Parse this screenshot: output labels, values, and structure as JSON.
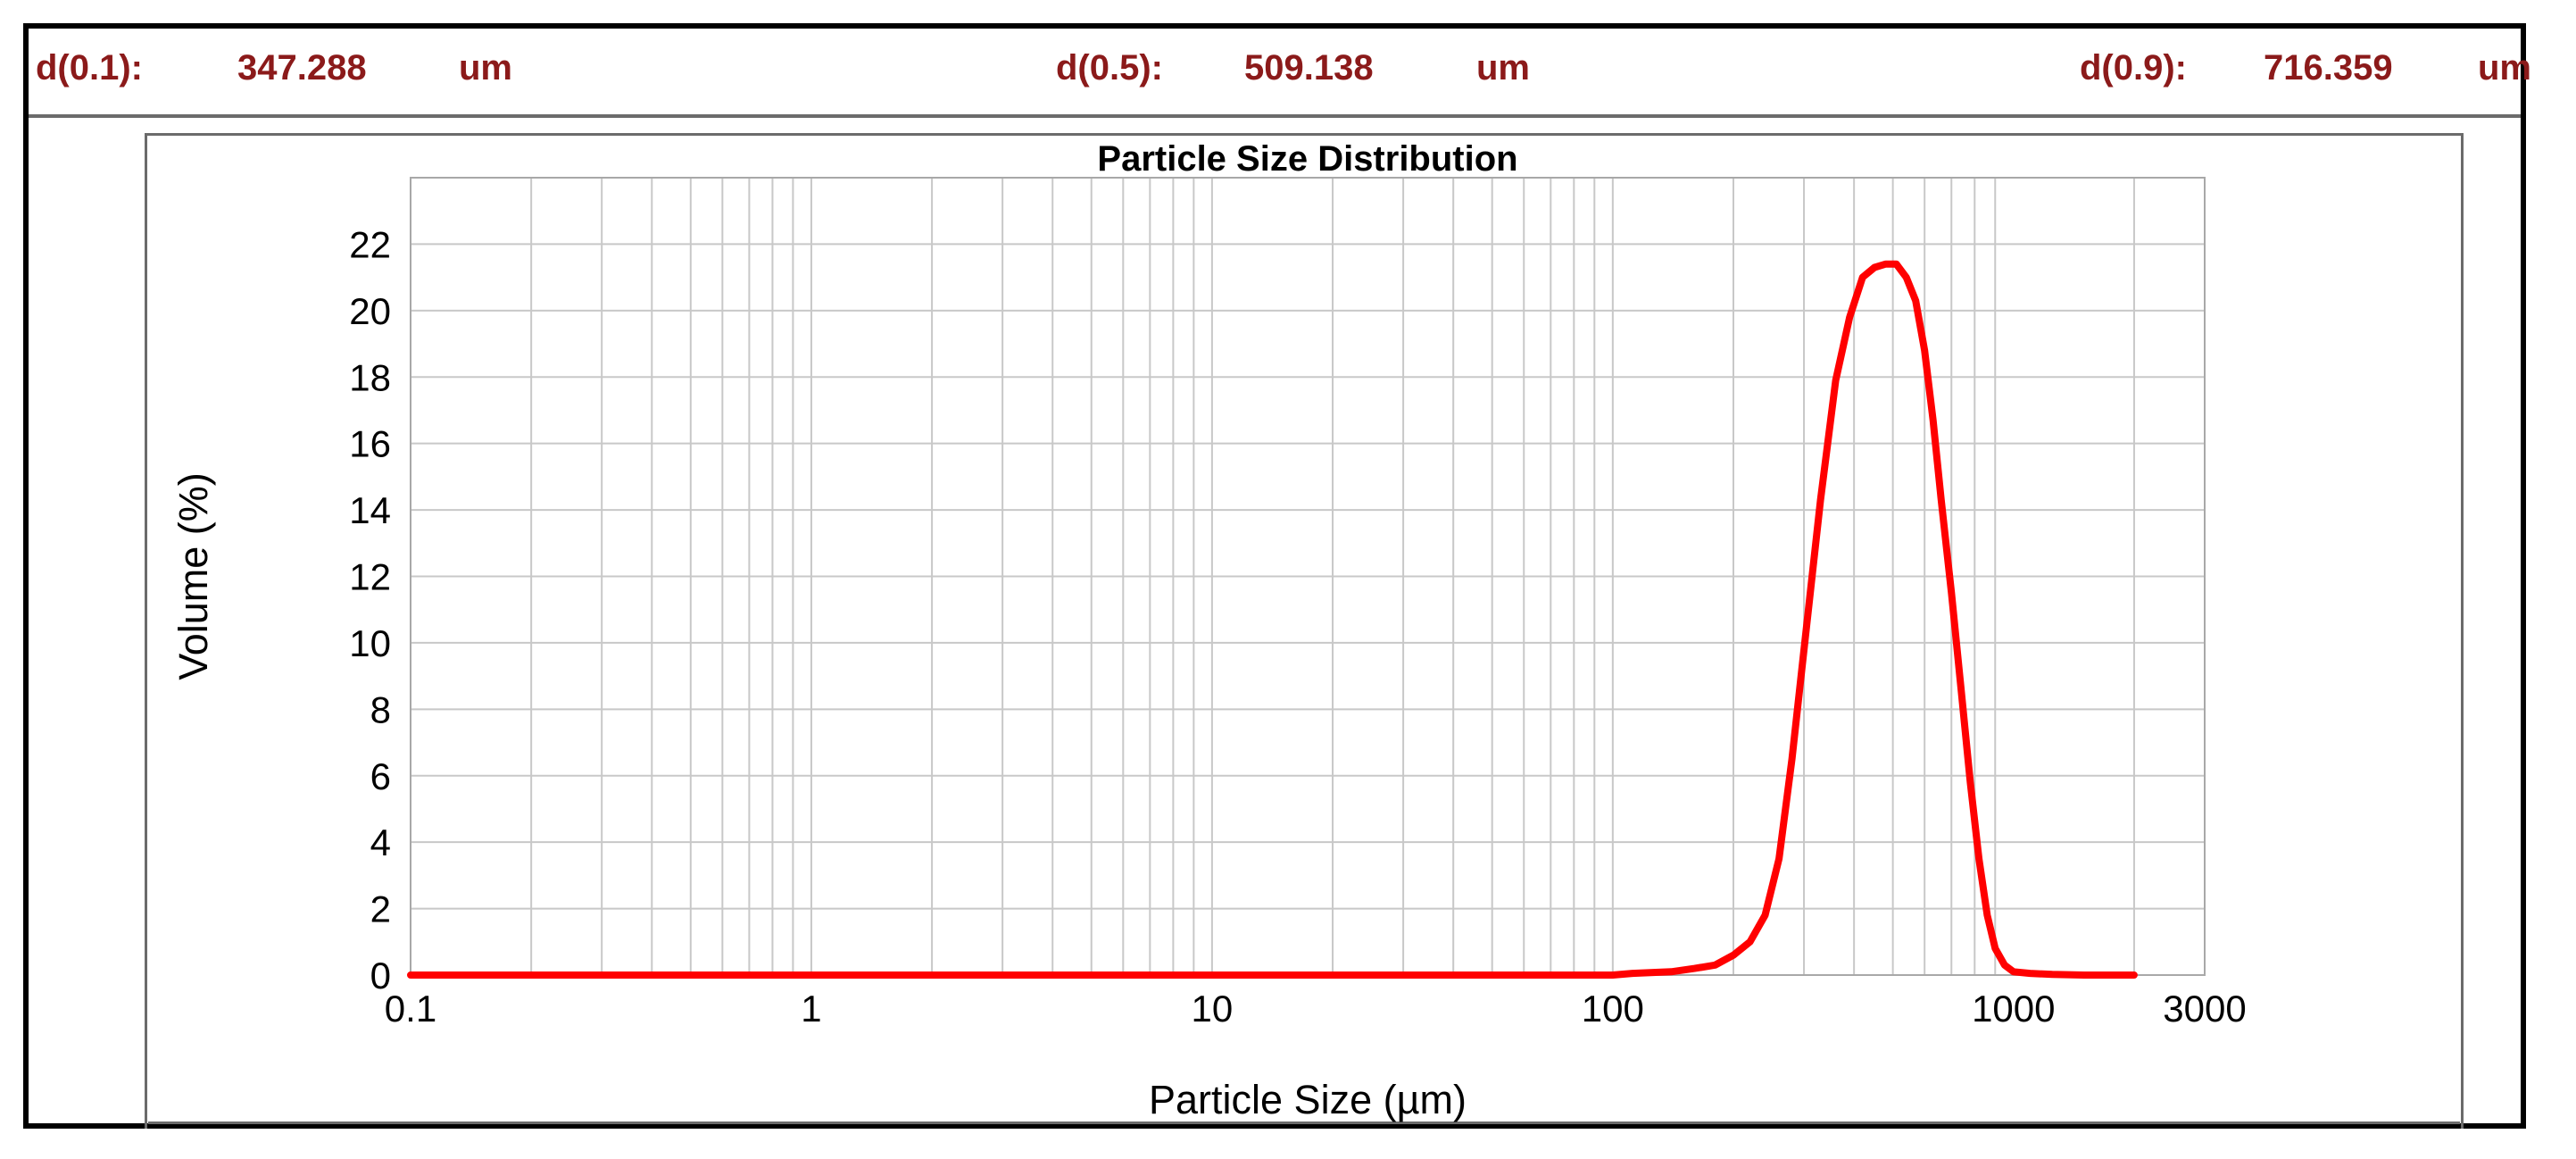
{
  "stats": {
    "d10": {
      "label": "d(0.1):",
      "value": "347.288",
      "unit": "um"
    },
    "d50": {
      "label": "d(0.5):",
      "value": "509.138",
      "unit": "um"
    },
    "d90": {
      "label": "d(0.9):",
      "value": "716.359",
      "unit": "um"
    },
    "color": "#8b1a1a"
  },
  "chart_data": {
    "type": "line",
    "title": "Particle Size Distribution",
    "xlabel": "Particle Size (µm)",
    "ylabel": "Volume (%)",
    "xscale": "log",
    "xlim": [
      0.1,
      3000
    ],
    "ylim": [
      0,
      24
    ],
    "xticks": [
      0.1,
      1,
      10,
      100,
      1000,
      3000
    ],
    "xtick_labels": [
      "0.1",
      "1",
      "10",
      "100",
      "1000",
      "3000"
    ],
    "yticks": [
      0,
      2,
      4,
      6,
      8,
      10,
      12,
      14,
      16,
      18,
      20,
      22
    ],
    "ytick_labels": [
      "0",
      "2",
      "4",
      "6",
      "8",
      "10",
      "12",
      "14",
      "16",
      "18",
      "20",
      "22"
    ],
    "grid": true,
    "series_color": "#ff0000",
    "series": [
      {
        "x": [
          0.1,
          1,
          10,
          100,
          112,
          140,
          160,
          180,
          200,
          220,
          240,
          260,
          280,
          300,
          330,
          360,
          390,
          420,
          450,
          480,
          510,
          540,
          570,
          600,
          630,
          660,
          700,
          740,
          780,
          820,
          860,
          900,
          950,
          1000,
          1100,
          1250,
          1500,
          2000
        ],
        "y": [
          0,
          0,
          0,
          0,
          0.05,
          0.1,
          0.2,
          0.3,
          0.6,
          1.0,
          1.8,
          3.5,
          6.5,
          9.8,
          14.3,
          17.9,
          19.8,
          21.0,
          21.3,
          21.4,
          21.4,
          21.0,
          20.3,
          18.8,
          16.7,
          14.3,
          11.5,
          8.6,
          5.8,
          3.5,
          1.8,
          0.8,
          0.3,
          0.1,
          0.05,
          0.02,
          0.0,
          0.0
        ]
      }
    ]
  }
}
